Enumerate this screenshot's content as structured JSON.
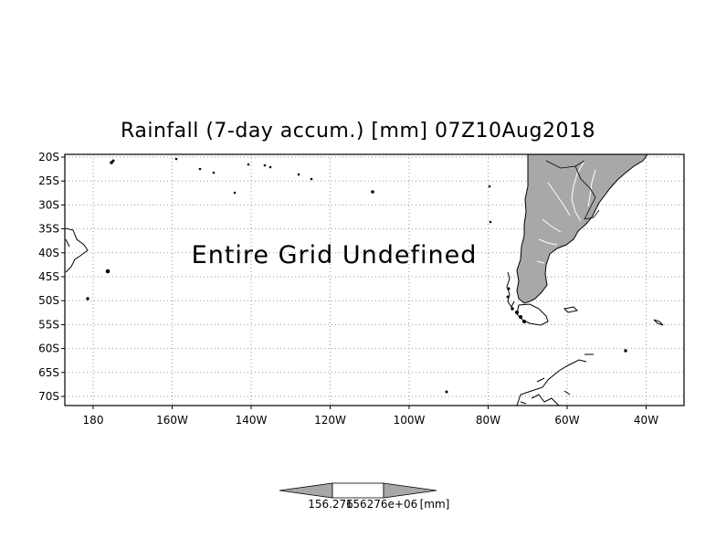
{
  "title": "Rainfall (7-day accum.) [mm] 07Z10Aug2018",
  "message": "Entire Grid Undefined",
  "lat_ticks": [
    "20S",
    "25S",
    "30S",
    "35S",
    "40S",
    "45S",
    "50S",
    "55S",
    "60S",
    "65S",
    "70S"
  ],
  "lon_ticks": [
    "180",
    "160W",
    "140W",
    "120W",
    "100W",
    "80W",
    "60W",
    "40W"
  ],
  "colorbar": {
    "label_min": "156.276",
    "label_max": "156276e+06",
    "unit": "[mm]"
  },
  "colors": {
    "land": "#a8a8a8",
    "coast": "#000000",
    "river": "#ffffff",
    "grid": "#9a9a9a",
    "colorbar_arrow": "#a8a8a8"
  }
}
